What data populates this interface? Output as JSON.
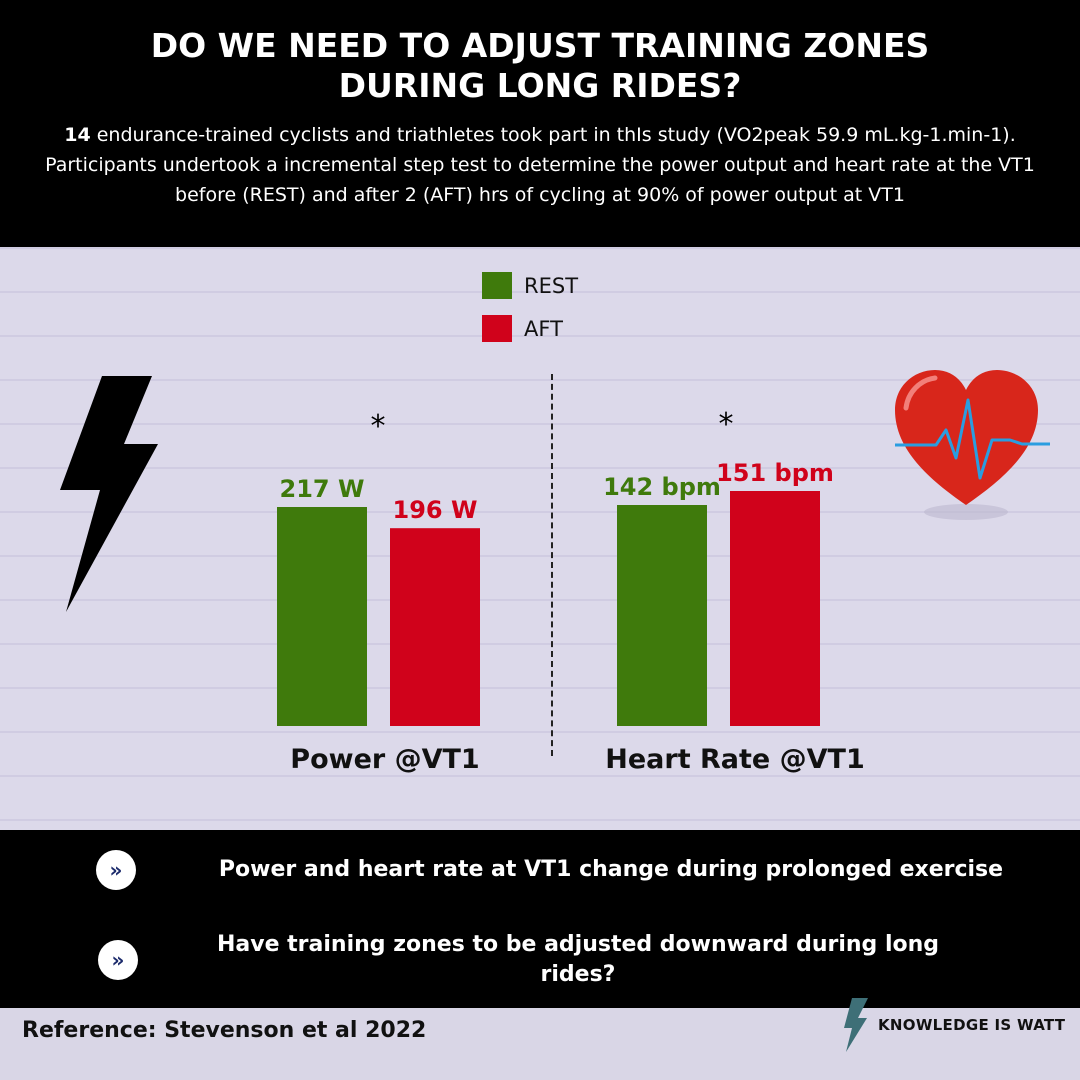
{
  "header": {
    "title_line1": "DO WE NEED TO ADJUST TRAINING ZONES",
    "title_line2": "DURING LONG RIDES?",
    "desc_number": "14",
    "desc_text": " endurance-trained cyclists and triathletes took part in thIs study (VO2peak 59.9 mL.kg-1.min-1).  Participants undertook a incremental step test to determine the power output and heart rate at the VT1 before (REST) and after 2 (AFT) hrs of cycling at 90% of  power output at VT1"
  },
  "legend": {
    "rest_label": "REST",
    "aft_label": "AFT",
    "rest_color": "#3f7a0c",
    "aft_color": "#d0021b"
  },
  "chart_data": [
    {
      "type": "bar",
      "title": "Power @VT1",
      "categories": [
        "REST",
        "AFT"
      ],
      "values": [
        217,
        196
      ],
      "value_labels": [
        "217 W",
        "196 W"
      ],
      "unit": "W",
      "significance_marker": "*",
      "colors": [
        "#3f7a0c",
        "#d0021b"
      ]
    },
    {
      "type": "bar",
      "title": "Heart Rate @VT1",
      "categories": [
        "REST",
        "AFT"
      ],
      "values": [
        142,
        151
      ],
      "value_labels": [
        "142 bpm",
        "151 bpm"
      ],
      "unit": "bpm",
      "significance_marker": "*",
      "colors": [
        "#3f7a0c",
        "#d0021b"
      ]
    }
  ],
  "icons": {
    "left": "lightning-bolt-icon",
    "right": "heart-pulse-icon",
    "bullet": "double-chevron-right-icon",
    "brand": "lightning-bolt-icon"
  },
  "takeaways": [
    {
      "text": "Power and heart rate at VT1 change during prolonged exercise"
    },
    {
      "text": "Have training zones to be adjusted downward during long rides?"
    }
  ],
  "bullet_glyph": "»",
  "reference": "Reference: Stevenson et al 2022",
  "brand": "KNOWLEDGE IS WATT"
}
